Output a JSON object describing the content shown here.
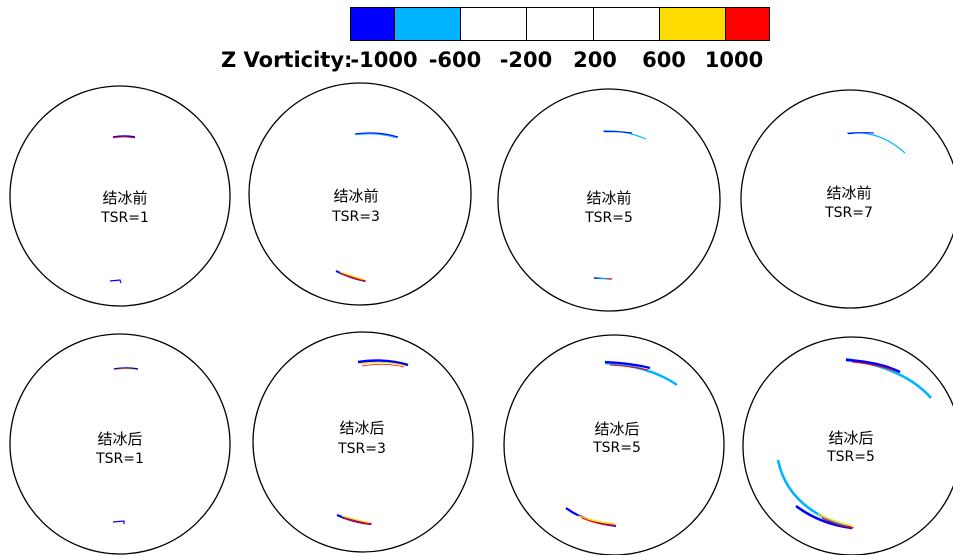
{
  "legend": {
    "title": "Z Vorticity:",
    "ticks": [
      "-1000",
      "-600",
      "-200",
      "200",
      "600",
      "1000"
    ],
    "colors": [
      "#0000ff",
      "#00b4ff",
      "#ffffff",
      "#ffffff",
      "#ffffff",
      "#ffdc00",
      "#ff0000"
    ]
  },
  "panels": [
    {
      "state": "结冰前",
      "tsr": "TSR=1"
    },
    {
      "state": "结冰前",
      "tsr": "TSR=3"
    },
    {
      "state": "结冰前",
      "tsr": "TSR=5"
    },
    {
      "state": "结冰前",
      "tsr": "TSR=7"
    },
    {
      "state": "结冰后",
      "tsr": "TSR=1"
    },
    {
      "state": "结冰后",
      "tsr": "TSR=3"
    },
    {
      "state": "结冰后",
      "tsr": "TSR=5"
    },
    {
      "state": "结冰后",
      "tsr": "TSR=5"
    }
  ]
}
